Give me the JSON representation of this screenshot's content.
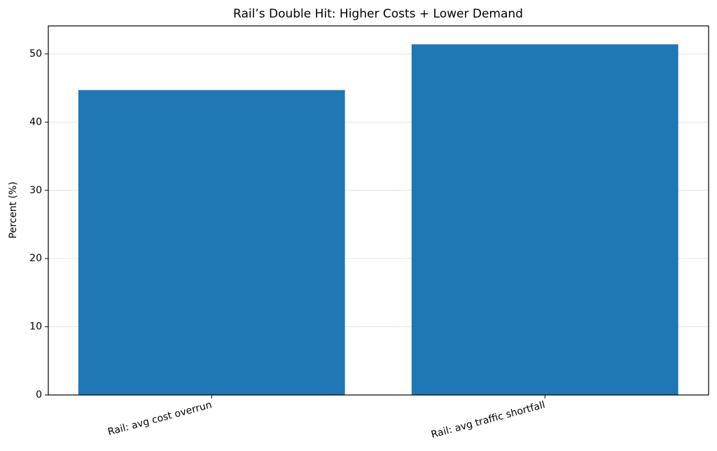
{
  "chart_data": {
    "type": "bar",
    "title": "Rail’s Double Hit: Higher Costs + Lower Demand",
    "ylabel": "Percent (%)",
    "categories": [
      "Rail: avg cost overrun",
      "Rail: avg traffic shortfall"
    ],
    "values": [
      44.7,
      51.4
    ],
    "color": "#1f77b4",
    "ylim": [
      0,
      54.1
    ],
    "yticks": [
      0,
      10,
      20,
      30,
      40,
      50
    ],
    "grid": true
  }
}
